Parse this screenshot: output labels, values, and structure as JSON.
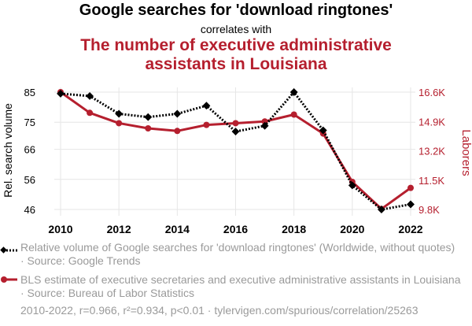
{
  "title": "Google searches for 'download ringtones'",
  "subtitle": "correlates with",
  "title2_line1": "The number of executive administrative",
  "title2_line2": "assistants in Louisiana",
  "colors": {
    "series1": "#000000",
    "series2": "#b51f2e",
    "grid": "#e6e6e6",
    "muted": "#9a9a9a"
  },
  "chart_data": {
    "type": "line",
    "x": [
      2010,
      2011,
      2012,
      2013,
      2014,
      2015,
      2016,
      2017,
      2018,
      2019,
      2020,
      2021,
      2022
    ],
    "xticks": [
      "2010",
      "2012",
      "2014",
      "2016",
      "2018",
      "2020",
      "2022"
    ],
    "xtick_values": [
      2010,
      2012,
      2014,
      2016,
      2018,
      2020,
      2022
    ],
    "xlim": [
      2010,
      2022
    ],
    "ylabel_left": "Rel. search volume",
    "ylabel_right": "Laborers",
    "left_ticks": [
      "85",
      "75",
      "66",
      "56",
      "46"
    ],
    "left_tick_values": [
      85,
      75,
      66,
      56,
      46
    ],
    "left_ylim": [
      46,
      85
    ],
    "right_ticks": [
      "16.6K",
      "14.9K",
      "13.2K",
      "11.5K",
      "9.8K"
    ],
    "right_tick_values": [
      16600,
      14900,
      13200,
      11500,
      9800
    ],
    "right_ylim": [
      9800,
      16600
    ],
    "series": [
      {
        "name": "Relative volume of Google searches for 'download ringtones' (Worldwide, without quotes) · Source: Google Trends",
        "axis": "left",
        "style": "dotted",
        "marker": "diamond",
        "values": [
          84.5,
          83.7,
          77.8,
          76.7,
          77.8,
          80.5,
          71.9,
          73.8,
          85.0,
          72.3,
          54.0,
          46.0,
          47.7
        ]
      },
      {
        "name": "BLS estimate of executive secretaries and executive administrative assistants in Louisiana · Source: Bureau of Labor Statistics",
        "axis": "right",
        "style": "solid",
        "marker": "circle",
        "values": [
          16600,
          15400,
          14800,
          14500,
          14350,
          14700,
          14800,
          14900,
          15300,
          14200,
          11400,
          9830,
          11050
        ]
      }
    ]
  },
  "legend": {
    "item1": "Relative volume of Google searches for 'download ringtones' (Worldwide, without quotes) · Source: Google Trends",
    "item2": "BLS estimate of executive secretaries and executive administrative assistants in Louisiana · Source: Bureau of Labor Statistics"
  },
  "footer": "2010-2022, r=0.966, r²=0.934, p<0.01 · tylervigen.com/spurious/correlation/25263"
}
